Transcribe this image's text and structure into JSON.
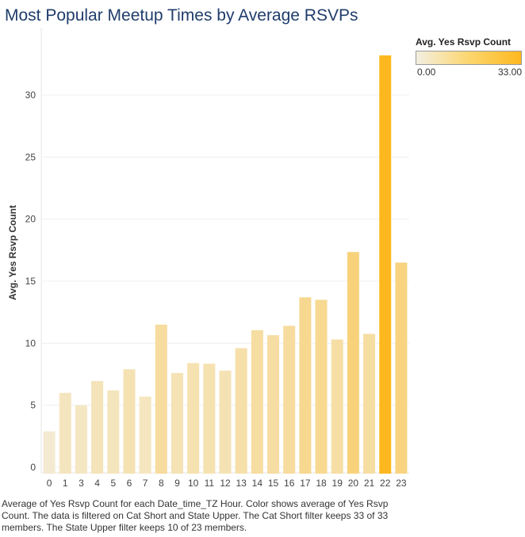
{
  "title": "Most Popular Meetup Times by Average RSVPs",
  "legend": {
    "title": "Avg. Yes Rsvp Count",
    "min_label": "0.00",
    "max_label": "33.00",
    "min_color": "#f3efe2",
    "max_color": "#fdb81f"
  },
  "footnote": "Average of Yes Rsvp Count for each Date_time_TZ Hour.  Color shows average of Yes Rsvp Count. The data is filtered on Cat Short and State Upper. The Cat Short filter keeps 33 of 33 members. The State Upper filter keeps 10 of 23 members.",
  "chart_data": {
    "type": "bar",
    "ylabel": "Avg. Yes Rsvp Count",
    "xlabel": "",
    "ylim": [
      0,
      33.3
    ],
    "yticks": [
      0,
      5,
      10,
      15,
      20,
      25,
      30
    ],
    "grid": true,
    "categories": [
      "0",
      "1",
      "3",
      "4",
      "5",
      "6",
      "7",
      "8",
      "9",
      "10",
      "11",
      "12",
      "13",
      "14",
      "15",
      "16",
      "17",
      "18",
      "19",
      "20",
      "21",
      "22",
      "23"
    ],
    "values": [
      2.9,
      6.0,
      5.0,
      6.95,
      6.2,
      7.9,
      5.7,
      11.5,
      7.6,
      8.4,
      8.35,
      7.8,
      9.6,
      11.05,
      10.65,
      11.4,
      13.7,
      13.5,
      10.3,
      17.35,
      10.75,
      33.2,
      16.5
    ],
    "color_range": [
      0,
      33
    ]
  }
}
